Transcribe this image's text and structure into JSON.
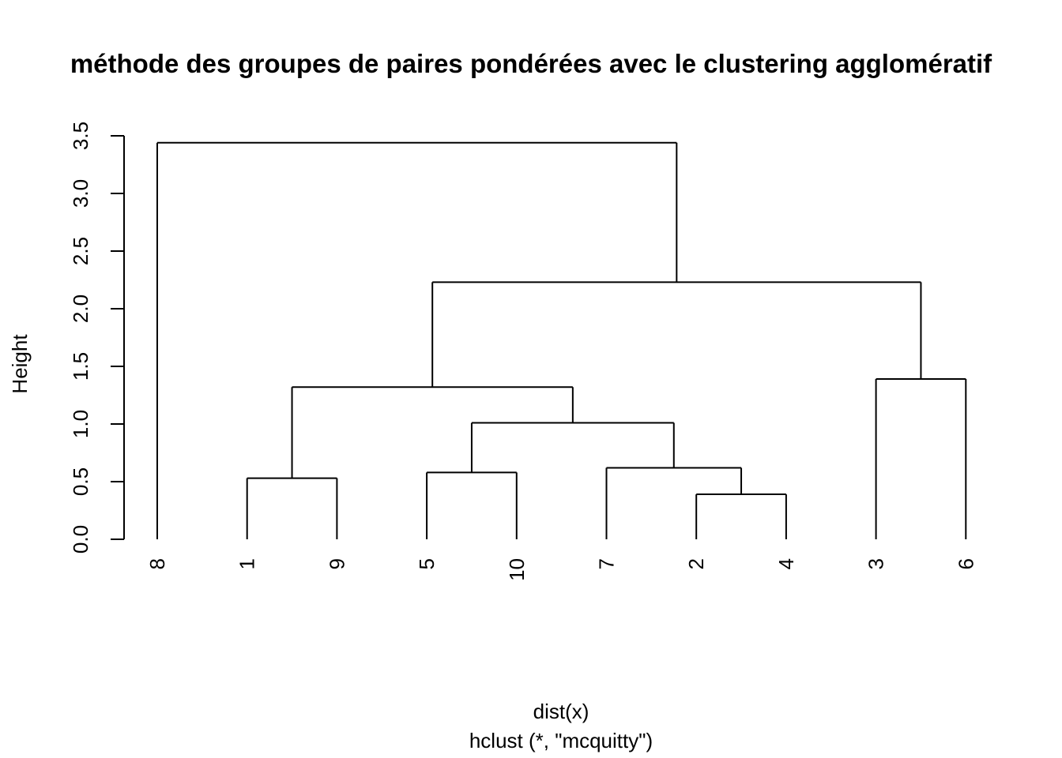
{
  "chart_data": {
    "type": "dendrogram",
    "title": "méthode des groupes de paires pondérées avec le clustering agglomératif",
    "xlabel": "dist(x)",
    "sublabel": "hclust (*, \"mcquitty\")",
    "ylabel": "Height",
    "ylim": [
      0,
      3.5
    ],
    "yticks": [
      "0.0",
      "0.5",
      "1.0",
      "1.5",
      "2.0",
      "2.5",
      "3.0",
      "3.5"
    ],
    "leaf_order": [
      "8",
      "1",
      "9",
      "5",
      "10",
      "7",
      "2",
      "4",
      "3",
      "6"
    ],
    "merges": [
      {
        "left": "2",
        "right": "4",
        "height": 0.39
      },
      {
        "left": "1",
        "right": "9",
        "height": 0.53
      },
      {
        "left": "5",
        "right": "10",
        "height": 0.58
      },
      {
        "left": "7",
        "right": "2+4",
        "height": 0.62
      },
      {
        "left": "5+10",
        "right": "7+2+4",
        "height": 1.01
      },
      {
        "left": "1+9",
        "right": "5+10+7+2+4",
        "height": 1.32
      },
      {
        "left": "3",
        "right": "6",
        "height": 1.39
      },
      {
        "left": "1+9+5+10+7+2+4",
        "right": "3+6",
        "height": 2.23
      },
      {
        "left": "8",
        "right": "1+9+5+10+7+2+4+3+6",
        "height": 3.44
      }
    ],
    "tree": {
      "h": 3.44,
      "c": [
        {
          "leaf": "8"
        },
        {
          "h": 2.23,
          "c": [
            {
              "h": 1.32,
              "c": [
                {
                  "h": 0.53,
                  "c": [
                    {
                      "leaf": "1"
                    },
                    {
                      "leaf": "9"
                    }
                  ]
                },
                {
                  "h": 1.01,
                  "c": [
                    {
                      "h": 0.58,
                      "c": [
                        {
                          "leaf": "5"
                        },
                        {
                          "leaf": "10"
                        }
                      ]
                    },
                    {
                      "h": 0.62,
                      "c": [
                        {
                          "leaf": "7"
                        },
                        {
                          "h": 0.39,
                          "c": [
                            {
                              "leaf": "2"
                            },
                            {
                              "leaf": "4"
                            }
                          ]
                        }
                      ]
                    }
                  ]
                }
              ]
            },
            {
              "h": 1.39,
              "c": [
                {
                  "leaf": "3"
                },
                {
                  "leaf": "6"
                }
              ]
            }
          ]
        }
      ]
    }
  }
}
